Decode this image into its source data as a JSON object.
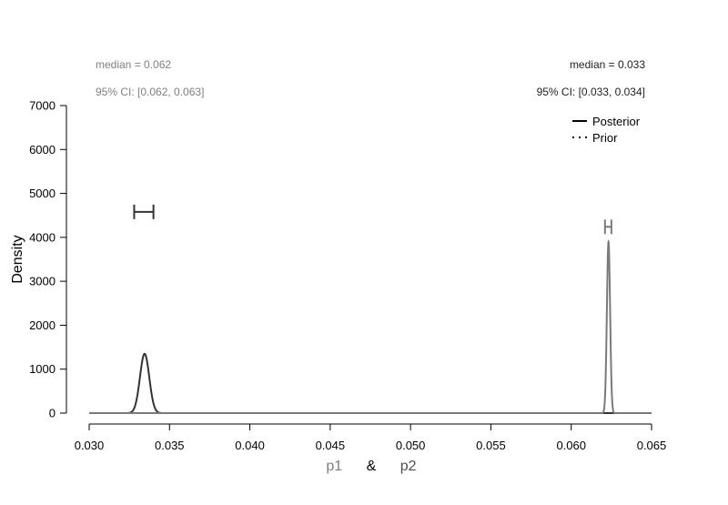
{
  "chart_data": {
    "type": "line",
    "xlabel_parts": [
      {
        "text": "p1",
        "color": "#808080"
      },
      {
        "text": "&",
        "color": "#000000"
      },
      {
        "text": "p2",
        "color": "#4d4d4d"
      }
    ],
    "ylabel": "Density",
    "xlim": [
      0.03,
      0.065
    ],
    "ylim": [
      0,
      7000
    ],
    "x_ticks": [
      "0.030",
      "0.035",
      "0.040",
      "0.045",
      "0.050",
      "0.055",
      "0.060",
      "0.065"
    ],
    "y_ticks": [
      "0",
      "1000",
      "2000",
      "3000",
      "4000",
      "5000",
      "6000",
      "7000"
    ],
    "grid": false,
    "legend": {
      "position": "top-right",
      "entries": [
        {
          "label": "Posterior",
          "style": "solid"
        },
        {
          "label": "Prior",
          "style": "dotted"
        }
      ]
    },
    "annotations": {
      "left": {
        "median": "median = 0.062",
        "ci": "95% CI: [0.062, 0.063]",
        "color": "#808080"
      },
      "right": {
        "median": "median = 0.033",
        "ci": "95% CI: [0.033, 0.034]",
        "color": "#222222"
      }
    },
    "series": [
      {
        "color": "#333333",
        "posterior": {
          "mean": 0.03345,
          "sd": 0.00029,
          "peak": 1350
        },
        "ci_bar": {
          "lower": 0.0328,
          "upper": 0.034,
          "density": 4580
        }
      },
      {
        "color": "#7a7a7a",
        "posterior": {
          "mean": 0.06232,
          "sd": 0.0001,
          "peak": 3900
        },
        "ci_bar": {
          "lower": 0.0621,
          "upper": 0.0625,
          "density": 4240
        }
      }
    ]
  }
}
